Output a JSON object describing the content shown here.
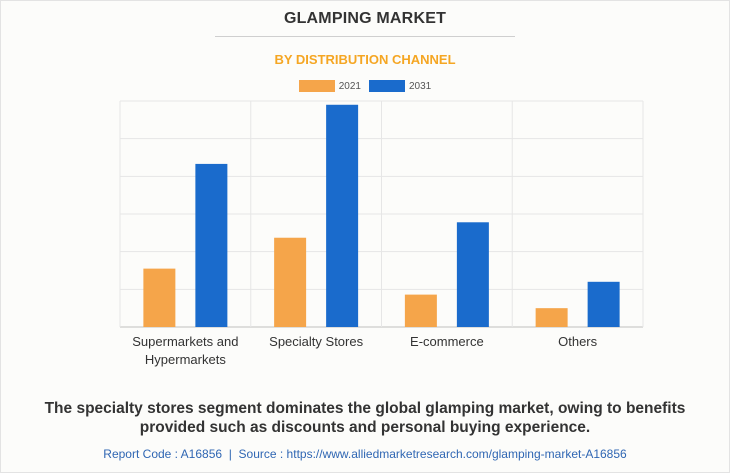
{
  "header": {
    "title": "GLAMPING MARKET",
    "subtitle": "BY DISTRIBUTION CHANNEL"
  },
  "caption": "The specialty stores segment dominates the global glamping market, owing to benefits provided such as discounts and personal buying experience.",
  "footer": {
    "report_code": "Report Code : A16856",
    "separator": "|",
    "source": "Source : https://www.alliedmarketresearch.com/glamping-market-A16856"
  },
  "colors": {
    "series_2021": "#f5a54a",
    "series_2031": "#1a6bcc",
    "subtitle": "#f5a623",
    "footer": "#2f66b3"
  },
  "chart_data": {
    "type": "bar",
    "title": "GLAMPING MARKET",
    "subtitle": "BY DISTRIBUTION CHANNEL",
    "categories": [
      [
        "Supermarkets and",
        "Hypermarkets"
      ],
      [
        "Specialty Stores"
      ],
      [
        "E-commerce"
      ],
      [
        "Others"
      ]
    ],
    "series": [
      {
        "name": "2021",
        "color": "#f5a54a",
        "values": [
          1.55,
          2.37,
          0.86,
          0.5
        ]
      },
      {
        "name": "2031",
        "color": "#1a6bcc",
        "values": [
          4.33,
          5.9,
          2.78,
          1.2
        ]
      }
    ],
    "ylim": [
      0,
      6
    ],
    "grid": true,
    "legend_position": "top-center"
  }
}
